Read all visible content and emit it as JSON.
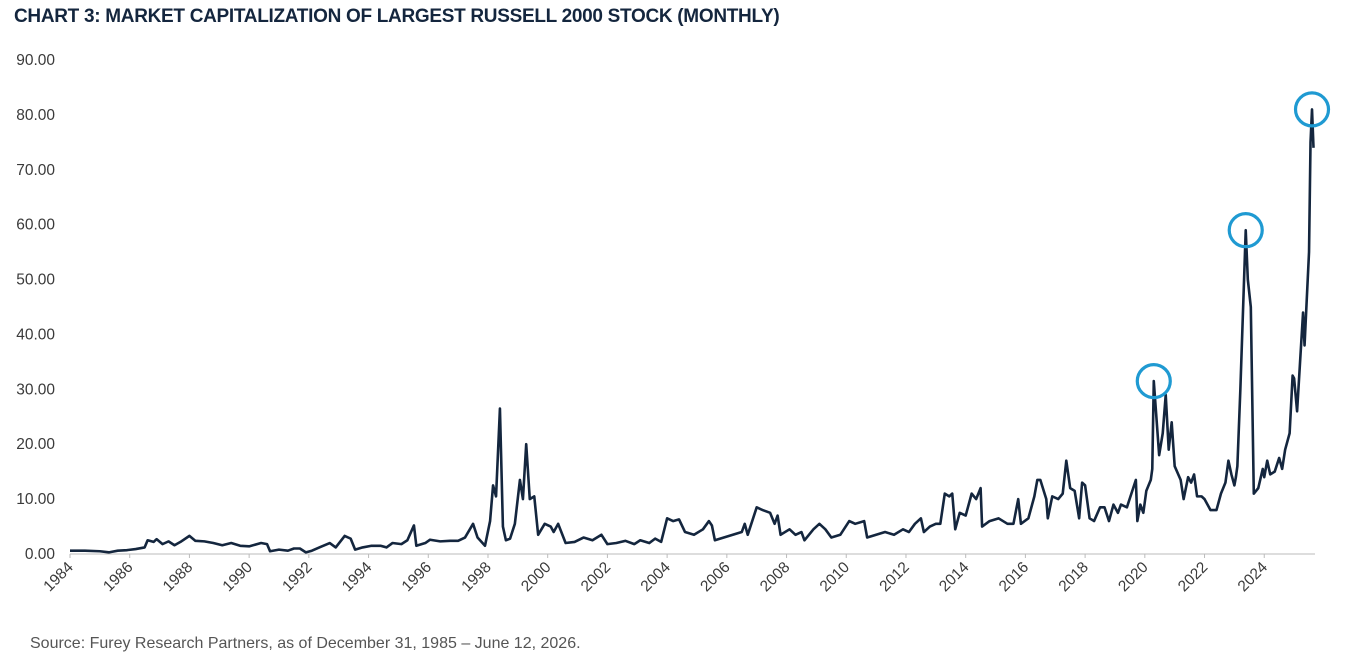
{
  "chart_data": {
    "type": "line",
    "title": "CHART 3: MARKET CAPITALIZATION OF LARGEST RUSSELL 2000 STOCK (MONTHLY)",
    "source": "Source: Furey Research Partners, as of December 31, 1985 – June 12, 2026.",
    "color": "#14263e",
    "highlight_color": "#1f9ad2",
    "highlight_x": [
      2020.3,
      2023.38,
      2025.6
    ],
    "grid": false,
    "xlim": [
      1984,
      2025.7
    ],
    "xticks": [
      1984,
      1986,
      1988,
      1990,
      1992,
      1994,
      1996,
      1998,
      2000,
      2002,
      2004,
      2006,
      2008,
      2010,
      2012,
      2014,
      2016,
      2018,
      2020,
      2022,
      2024
    ],
    "ylim": [
      0,
      90
    ],
    "yticks": [
      {
        "value": 0,
        "label": "0.00"
      },
      {
        "value": 10,
        "label": "10.00"
      },
      {
        "value": 20,
        "label": "20.00"
      },
      {
        "value": 30,
        "label": "30.00"
      },
      {
        "value": 40,
        "label": "40.00"
      },
      {
        "value": 50,
        "label": "50.00"
      },
      {
        "value": 60,
        "label": "60.00"
      },
      {
        "value": 70,
        "label": "70.00"
      },
      {
        "value": 80,
        "label": "80.00"
      },
      {
        "value": 90,
        "label": "90.00"
      }
    ],
    "x": [
      1984.0,
      1984.5,
      1985.0,
      1985.3,
      1985.6,
      1985.9,
      1986.2,
      1986.5,
      1986.6,
      1986.8,
      1986.9,
      1987.1,
      1987.3,
      1987.5,
      1987.7,
      1988.0,
      1988.2,
      1988.5,
      1988.8,
      1989.1,
      1989.4,
      1989.7,
      1990.0,
      1990.4,
      1990.6,
      1990.7,
      1991.0,
      1991.3,
      1991.5,
      1991.7,
      1991.9,
      1992.1,
      1992.4,
      1992.7,
      1992.9,
      1993.2,
      1993.4,
      1993.55,
      1993.8,
      1994.1,
      1994.4,
      1994.6,
      1994.8,
      1995.1,
      1995.3,
      1995.52,
      1995.6,
      1995.9,
      1996.06,
      1996.4,
      1996.73,
      1997.0,
      1997.23,
      1997.5,
      1997.65,
      1997.9,
      1998.07,
      1998.17,
      1998.27,
      1998.4,
      1998.5,
      1998.6,
      1998.74,
      1998.9,
      1999.07,
      1999.17,
      1999.28,
      1999.4,
      1999.55,
      1999.68,
      1999.9,
      2000.1,
      2000.2,
      2000.35,
      2000.6,
      2000.9,
      2001.2,
      2001.5,
      2001.8,
      2002.0,
      2002.3,
      2002.6,
      2002.9,
      2003.1,
      2003.4,
      2003.6,
      2003.8,
      2004.0,
      2004.2,
      2004.4,
      2004.6,
      2004.9,
      2005.2,
      2005.4,
      2005.5,
      2005.6,
      2005.9,
      2006.2,
      2006.5,
      2006.6,
      2006.7,
      2007.0,
      2007.2,
      2007.45,
      2007.6,
      2007.7,
      2007.8,
      2008.1,
      2008.3,
      2008.5,
      2008.6,
      2008.9,
      2009.1,
      2009.3,
      2009.5,
      2009.8,
      2010.1,
      2010.3,
      2010.6,
      2010.7,
      2011.0,
      2011.3,
      2011.6,
      2011.9,
      2012.1,
      2012.3,
      2012.5,
      2012.6,
      2012.8,
      2013.0,
      2013.15,
      2013.3,
      2013.45,
      2013.55,
      2013.65,
      2013.8,
      2014.0,
      2014.2,
      2014.35,
      2014.5,
      2014.55,
      2014.8,
      2015.1,
      2015.4,
      2015.6,
      2015.76,
      2015.85,
      2016.1,
      2016.3,
      2016.4,
      2016.5,
      2016.7,
      2016.75,
      2016.9,
      2017.1,
      2017.25,
      2017.37,
      2017.5,
      2017.65,
      2017.8,
      2017.9,
      2018.0,
      2018.15,
      2018.3,
      2018.5,
      2018.65,
      2018.8,
      2018.95,
      2019.1,
      2019.2,
      2019.4,
      2019.55,
      2019.7,
      2019.75,
      2019.85,
      2019.95,
      2020.05,
      2020.2,
      2020.25,
      2020.3,
      2020.48,
      2020.6,
      2020.7,
      2020.8,
      2020.9,
      2021.0,
      2021.2,
      2021.3,
      2021.45,
      2021.55,
      2021.65,
      2021.75,
      2021.9,
      2022.0,
      2022.1,
      2022.2,
      2022.4,
      2022.55,
      2022.7,
      2022.8,
      2022.9,
      2023.0,
      2023.05,
      2023.1,
      2023.2,
      2023.38,
      2023.45,
      2023.55,
      2023.65,
      2023.8,
      2023.95,
      2024.0,
      2024.1,
      2024.2,
      2024.35,
      2024.5,
      2024.6,
      2024.7,
      2024.85,
      2024.95,
      2025.0,
      2025.1,
      2025.2,
      2025.3,
      2025.35,
      2025.5,
      2025.55,
      2025.6,
      2025.65
    ],
    "values": [
      0.6,
      0.6,
      0.5,
      0.3,
      0.6,
      0.7,
      0.9,
      1.2,
      2.5,
      2.2,
      2.7,
      1.8,
      2.3,
      1.6,
      2.2,
      3.3,
      2.4,
      2.3,
      2.0,
      1.6,
      2.0,
      1.5,
      1.4,
      2.0,
      1.8,
      0.5,
      0.8,
      0.6,
      1.0,
      1.0,
      0.3,
      0.6,
      1.3,
      2.0,
      1.2,
      3.3,
      2.8,
      0.8,
      1.2,
      1.5,
      1.5,
      1.2,
      2.0,
      1.8,
      2.5,
      5.2,
      1.5,
      2.0,
      2.6,
      2.3,
      2.4,
      2.4,
      3.0,
      5.5,
      3.0,
      1.5,
      6.0,
      12.5,
      10.5,
      26.5,
      5.0,
      2.5,
      2.8,
      5.5,
      13.5,
      10.0,
      20.0,
      10.0,
      10.5,
      3.5,
      5.5,
      5.0,
      4.0,
      5.5,
      2.0,
      2.2,
      3.0,
      2.5,
      3.5,
      1.8,
      2.0,
      2.4,
      1.8,
      2.5,
      2.0,
      2.8,
      2.2,
      6.5,
      6.0,
      6.3,
      4.0,
      3.5,
      4.5,
      6.0,
      5.2,
      2.5,
      3.0,
      3.5,
      4.0,
      5.5,
      3.5,
      8.5,
      8.0,
      7.5,
      5.5,
      7.0,
      3.5,
      4.5,
      3.5,
      4.0,
      2.5,
      4.5,
      5.5,
      4.5,
      3.0,
      3.5,
      6.0,
      5.5,
      6.0,
      3.0,
      3.5,
      4.0,
      3.5,
      4.5,
      4.0,
      5.5,
      6.5,
      4.0,
      5.0,
      5.5,
      5.5,
      11.0,
      10.5,
      11.0,
      4.5,
      7.5,
      7.0,
      11.0,
      10.0,
      12.0,
      5.0,
      6.0,
      6.5,
      5.5,
      5.5,
      10.0,
      5.5,
      6.5,
      10.5,
      13.5,
      13.5,
      10.0,
      6.5,
      10.5,
      10.0,
      11.0,
      17.0,
      12.0,
      11.5,
      6.5,
      13.0,
      12.5,
      6.5,
      6.0,
      8.5,
      8.5,
      6.0,
      9.0,
      7.5,
      9.0,
      8.5,
      11.0,
      13.5,
      6.0,
      9.0,
      7.5,
      11.5,
      13.5,
      15.5,
      31.5,
      18.0,
      22.0,
      29.0,
      19.0,
      24.0,
      16.0,
      13.5,
      10.0,
      14.0,
      13.0,
      14.5,
      10.5,
      10.5,
      10.0,
      9.0,
      8.0,
      8.0,
      11.0,
      13.0,
      17.0,
      14.5,
      12.5,
      14.0,
      16.0,
      30.0,
      59.0,
      50.0,
      45.0,
      11.0,
      12.0,
      15.5,
      14.0,
      17.0,
      14.5,
      15.0,
      17.5,
      15.5,
      19.0,
      22.0,
      32.5,
      32.0,
      26.0,
      35.0,
      44.0,
      38.0,
      55.0,
      75.0,
      81.0,
      74.0
    ]
  }
}
